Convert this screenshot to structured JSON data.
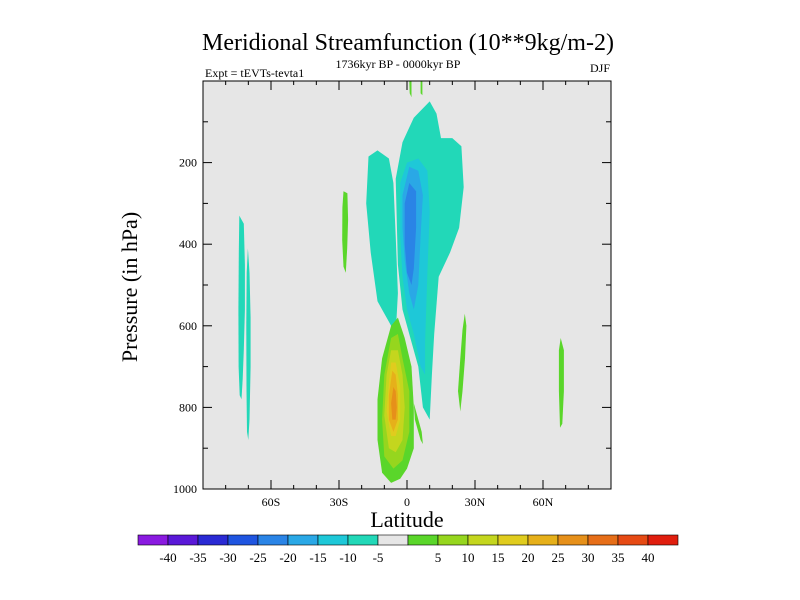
{
  "chart_data": {
    "type": "contour",
    "title": "Meridional Streamfunction (10**9kg/m-2)",
    "subtitle_left": "Expt = tEVTs-tevta1",
    "subtitle_center": "1736kyr BP - 0000kyr BP",
    "subtitle_right": "DJF",
    "xlabel": "Latitude",
    "ylabel": "Pressure (in hPa)",
    "xlim": [
      -90,
      90
    ],
    "ylim": [
      0,
      1000
    ],
    "y_inverted": true,
    "x_ticks": [
      {
        "value": -60,
        "label": "60S"
      },
      {
        "value": -30,
        "label": "30S"
      },
      {
        "value": 0,
        "label": "0"
      },
      {
        "value": 30,
        "label": "30N"
      },
      {
        "value": 60,
        "label": "60N"
      }
    ],
    "y_ticks": [
      {
        "value": 200,
        "label": "200"
      },
      {
        "value": 400,
        "label": "400"
      },
      {
        "value": 600,
        "label": "600"
      },
      {
        "value": 800,
        "label": "800"
      },
      {
        "value": 1000,
        "label": "1000"
      }
    ],
    "plot_background": "#e6e6e6",
    "colorbar": {
      "colors": [
        "#8a1ae0",
        "#5a18d8",
        "#2a2ad4",
        "#1f55e0",
        "#2a84e6",
        "#2aa8e6",
        "#1ec8d8",
        "#22d8b8",
        "#e6e6e6",
        "#5ad62a",
        "#96d61e",
        "#c4d61e",
        "#e0cc1e",
        "#e6b01a",
        "#e6901a",
        "#e66e18",
        "#e64a14",
        "#e01e0e"
      ],
      "labels": [
        "-40",
        "-35",
        "-30",
        "-25",
        "-20",
        "-15",
        "-10",
        "-5",
        "5",
        "10",
        "15",
        "20",
        "25",
        "30",
        "35",
        "40"
      ]
    },
    "features": [
      {
        "name": "sh-high-lat-negative-cell",
        "level": "-5",
        "color": "#22d8b8",
        "points": [
          [
            -74,
            330
          ],
          [
            -72,
            350
          ],
          [
            -71.5,
            450
          ],
          [
            -71.5,
            560
          ],
          [
            -72,
            660
          ],
          [
            -72.5,
            730
          ],
          [
            -73,
            780
          ],
          [
            -73.8,
            770
          ],
          [
            -74.3,
            700
          ],
          [
            -74.4,
            560
          ],
          [
            -74.2,
            420
          ]
        ]
      },
      {
        "name": "sh-high-lat-negative-cell-2",
        "level": "-5",
        "color": "#22d8b8",
        "points": [
          [
            -70.2,
            410
          ],
          [
            -69.5,
            470
          ],
          [
            -69,
            580
          ],
          [
            -69,
            700
          ],
          [
            -69.5,
            830
          ],
          [
            -70,
            880
          ],
          [
            -70.6,
            860
          ],
          [
            -70.8,
            760
          ],
          [
            -70.9,
            600
          ],
          [
            -70.7,
            470
          ]
        ]
      },
      {
        "name": "sh-subtropical-positive-cell",
        "level": "5",
        "color": "#5ad62a",
        "points": [
          [
            -28,
            270
          ],
          [
            -26.3,
            275
          ],
          [
            -26,
            340
          ],
          [
            -26.4,
            410
          ],
          [
            -27,
            470
          ],
          [
            -28,
            455
          ],
          [
            -28.6,
            390
          ],
          [
            -28.5,
            310
          ]
        ]
      },
      {
        "name": "hadley-southern-negative-cell",
        "level": "-5",
        "color": "#22d8b8",
        "points": [
          [
            -17,
            185
          ],
          [
            -13,
            170
          ],
          [
            -8,
            190
          ],
          [
            -6,
            250
          ],
          [
            -5,
            380
          ],
          [
            -4,
            520
          ],
          [
            -5,
            620
          ],
          [
            -9,
            580
          ],
          [
            -13,
            540
          ],
          [
            -16,
            420
          ],
          [
            -18,
            300
          ]
        ]
      },
      {
        "name": "hadley-northern-negative-cell",
        "level": "-5",
        "color": "#22d8b8",
        "points": [
          [
            -5,
            240
          ],
          [
            -2,
            150
          ],
          [
            3,
            90
          ],
          [
            10,
            50
          ],
          [
            13,
            80
          ],
          [
            15,
            140
          ],
          [
            20,
            140
          ],
          [
            24,
            160
          ],
          [
            25,
            260
          ],
          [
            23,
            360
          ],
          [
            19,
            420
          ],
          [
            14,
            480
          ],
          [
            12,
            620
          ],
          [
            11,
            720
          ],
          [
            10,
            830
          ],
          [
            7,
            800
          ],
          [
            5,
            700
          ],
          [
            2,
            640
          ],
          [
            -2,
            560
          ],
          [
            -4,
            450
          ]
        ]
      },
      {
        "name": "hadley-negative-10",
        "level": "-10",
        "color": "#1ec8d8",
        "points": [
          [
            -3,
            250
          ],
          [
            0,
            200
          ],
          [
            5,
            190
          ],
          [
            9,
            220
          ],
          [
            10,
            320
          ],
          [
            9,
            470
          ],
          [
            8,
            640
          ],
          [
            8,
            720
          ],
          [
            6,
            700
          ],
          [
            3,
            620
          ],
          [
            0,
            560
          ],
          [
            -2,
            480
          ],
          [
            -3,
            380
          ]
        ]
      },
      {
        "name": "hadley-negative-15",
        "level": "-15",
        "color": "#2aa8e6",
        "points": [
          [
            -2,
            280
          ],
          [
            1,
            210
          ],
          [
            5,
            220
          ],
          [
            7,
            280
          ],
          [
            6,
            380
          ],
          [
            5,
            500
          ],
          [
            3,
            560
          ],
          [
            1,
            520
          ],
          [
            -1,
            440
          ],
          [
            -2,
            360
          ]
        ]
      },
      {
        "name": "hadley-negative-20",
        "level": "-20",
        "color": "#2a84e6",
        "points": [
          [
            -1,
            300
          ],
          [
            1,
            250
          ],
          [
            4,
            270
          ],
          [
            4,
            360
          ],
          [
            3,
            460
          ],
          [
            2,
            500
          ],
          [
            0,
            470
          ],
          [
            -1,
            400
          ]
        ]
      },
      {
        "name": "equatorial-positive-cell-5",
        "level": "5",
        "color": "#5ad62a",
        "points": [
          [
            -7,
            600
          ],
          [
            -4,
            580
          ],
          [
            -1,
            630
          ],
          [
            2,
            700
          ],
          [
            3,
            800
          ],
          [
            3,
            900
          ],
          [
            0,
            950
          ],
          [
            -3,
            975
          ],
          [
            -7,
            985
          ],
          [
            -11,
            960
          ],
          [
            -13,
            880
          ],
          [
            -13,
            780
          ],
          [
            -11,
            680
          ]
        ]
      },
      {
        "name": "equatorial-positive-cell-10",
        "level": "10",
        "color": "#96d61e",
        "points": [
          [
            -7,
            630
          ],
          [
            -4,
            620
          ],
          [
            -2,
            680
          ],
          [
            1,
            760
          ],
          [
            1,
            860
          ],
          [
            -2,
            930
          ],
          [
            -6,
            950
          ],
          [
            -10,
            920
          ],
          [
            -11,
            830
          ],
          [
            -10,
            720
          ]
        ]
      },
      {
        "name": "equatorial-positive-cell-15",
        "level": "15",
        "color": "#c4d61e",
        "points": [
          [
            -7,
            660
          ],
          [
            -4,
            660
          ],
          [
            -2,
            720
          ],
          [
            -1,
            800
          ],
          [
            -2,
            880
          ],
          [
            -5,
            910
          ],
          [
            -8,
            900
          ],
          [
            -10,
            820
          ],
          [
            -9,
            720
          ]
        ]
      },
      {
        "name": "equatorial-positive-cell-20",
        "level": "20",
        "color": "#e0cc1e",
        "points": [
          [
            -7,
            690
          ],
          [
            -5,
            690
          ],
          [
            -3,
            750
          ],
          [
            -3,
            830
          ],
          [
            -5,
            870
          ],
          [
            -7,
            870
          ],
          [
            -9,
            810
          ],
          [
            -8,
            740
          ]
        ]
      },
      {
        "name": "equatorial-positive-cell-25",
        "level": "25",
        "color": "#e6b01a",
        "points": [
          [
            -6.5,
            710
          ],
          [
            -5,
            720
          ],
          [
            -4,
            770
          ],
          [
            -4,
            830
          ],
          [
            -6,
            860
          ],
          [
            -8,
            830
          ],
          [
            -8,
            770
          ]
        ]
      },
      {
        "name": "equatorial-positive-cell-30",
        "level": "30",
        "color": "#e6901a",
        "points": [
          [
            -6,
            750
          ],
          [
            -5,
            760
          ],
          [
            -4.5,
            800
          ],
          [
            -5,
            830
          ],
          [
            -6.5,
            830
          ],
          [
            -7,
            790
          ]
        ]
      },
      {
        "name": "cross-equatorial-positive-sliver",
        "level": "5",
        "color": "#5ad62a",
        "points": [
          [
            3,
            790
          ],
          [
            4,
            810
          ],
          [
            6.5,
            860
          ],
          [
            7,
            890
          ],
          [
            6,
            880
          ],
          [
            3.5,
            830
          ]
        ]
      },
      {
        "name": "nh-subtropical-positive-cell",
        "level": "5",
        "color": "#5ad62a",
        "points": [
          [
            25.5,
            570
          ],
          [
            24.5,
            610
          ],
          [
            23.5,
            680
          ],
          [
            22.5,
            760
          ],
          [
            23.5,
            810
          ],
          [
            24.5,
            760
          ],
          [
            25.6,
            680
          ],
          [
            26.2,
            600
          ]
        ]
      },
      {
        "name": "nh-midlat-positive-cell",
        "level": "5",
        "color": "#5ad62a",
        "points": [
          [
            67.8,
            630
          ],
          [
            67,
            660
          ],
          [
            67,
            760
          ],
          [
            67.5,
            850
          ],
          [
            68.5,
            840
          ],
          [
            69.2,
            760
          ],
          [
            69.2,
            660
          ]
        ]
      },
      {
        "name": "upper-stratosphere-positive-streak",
        "level": "5",
        "color": "#5ad62a",
        "points": [
          [
            1,
            0
          ],
          [
            2,
            0
          ],
          [
            2,
            40
          ],
          [
            1.2,
            30
          ]
        ]
      },
      {
        "name": "upper-stratosphere-positive-streak-2",
        "level": "5",
        "color": "#5ad62a",
        "points": [
          [
            6,
            0
          ],
          [
            6.8,
            0
          ],
          [
            6.8,
            35
          ],
          [
            6,
            30
          ]
        ]
      }
    ]
  }
}
